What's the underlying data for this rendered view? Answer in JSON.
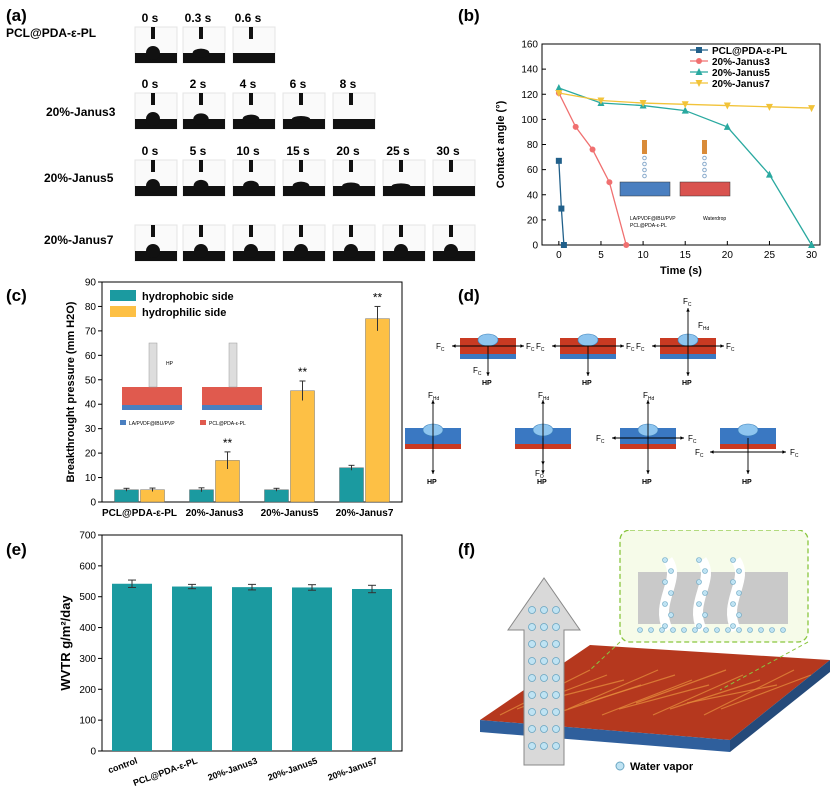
{
  "panels": {
    "a": "(a)",
    "b": "(b)",
    "c": "(c)",
    "d": "(d)",
    "e": "(e)",
    "f": "(f)"
  },
  "panel_a": {
    "rows": [
      {
        "label": "PCL@PDA-ε-PL",
        "times": [
          "0 s",
          "0.3 s",
          "0.6 s"
        ]
      },
      {
        "label": "20%-Janus3",
        "times": [
          "0 s",
          "2 s",
          "4 s",
          "6 s",
          "8 s"
        ]
      },
      {
        "label": "20%-Janus5",
        "times": [
          "0 s",
          "5 s",
          "10 s",
          "15 s",
          "20 s",
          "25 s",
          "30 s"
        ]
      },
      {
        "label": "20%-Janus7",
        "times": [
          "",
          "",
          "",
          "",
          "",
          "",
          ""
        ]
      }
    ]
  },
  "panel_d": {
    "force_labels": [
      "F",
      "C",
      "F",
      "C",
      "F",
      "C",
      "F",
      "C",
      "HP",
      "HP"
    ],
    "labels": {
      "fc": "F",
      "fc_sub": "C",
      "fhd": "F",
      "fhd_sub": "Hd",
      "fo": "F",
      "fo_sub": "O",
      "hp": "HP"
    }
  },
  "panel_f": {
    "legend": "Water vapor"
  },
  "colors": {
    "teal": "#1b9aa0",
    "yellow": "#fdc045",
    "pcl_line": "#21608a",
    "j3_line": "#f07070",
    "j5_line": "#2aa9a0",
    "j7_line": "#f2c339",
    "fiber_red": "#c93a22",
    "fiber_blue": "#3a78c2"
  },
  "chart_data": [
    {
      "id": "b",
      "type": "line",
      "xlabel": "Time (s)",
      "ylabel": "Contact angle (°)",
      "xlim": [
        -2,
        31
      ],
      "ylim": [
        0,
        160
      ],
      "xticks": [
        0,
        5,
        10,
        15,
        20,
        25,
        30
      ],
      "yticks": [
        0,
        20,
        40,
        60,
        80,
        100,
        120,
        140,
        160
      ],
      "legend_position": "top-right",
      "inset_labels": [
        "LA/PVDF@IBU/PVP",
        "PCL@PDA-ε-PL",
        "Waterdrop"
      ],
      "series": [
        {
          "name": "PCL@PDA-ε-PL",
          "marker": "square",
          "x": [
            0,
            0.3,
            0.6
          ],
          "y": [
            67,
            29,
            0
          ]
        },
        {
          "name": "20%-Janus3",
          "marker": "circle",
          "x": [
            0,
            2,
            4,
            6,
            8
          ],
          "y": [
            121,
            94,
            76,
            50,
            0
          ]
        },
        {
          "name": "20%-Janus5",
          "marker": "triangle-up",
          "x": [
            0,
            5,
            10,
            15,
            20,
            25,
            30
          ],
          "y": [
            125,
            113,
            111,
            107,
            94,
            56,
            0
          ]
        },
        {
          "name": "20%-Janus7",
          "marker": "triangle-down",
          "x": [
            0,
            5,
            10,
            15,
            20,
            25,
            30
          ],
          "y": [
            121,
            115,
            113,
            112,
            111,
            110,
            109
          ]
        }
      ]
    },
    {
      "id": "c",
      "type": "bar",
      "ylabel": "Breakthrought pressure (mm H2O)",
      "ylim": [
        0,
        90
      ],
      "yticks": [
        0,
        10,
        20,
        30,
        40,
        50,
        60,
        70,
        80,
        90
      ],
      "categories": [
        "PCL@PDA-ε-PL",
        "20%-Janus3",
        "20%-Janus5",
        "20%-Janus7"
      ],
      "legend_position": "top-left",
      "inset_labels": [
        "HP",
        "LA/PVDF@IBU/PVP",
        "PCL@PDA-ε-PL"
      ],
      "significance": [
        "",
        "**",
        "**",
        "**"
      ],
      "series": [
        {
          "name": "hydrophobic side",
          "values": [
            5,
            5,
            5,
            14
          ],
          "errors": [
            0.6,
            0.8,
            0.6,
            1.0
          ]
        },
        {
          "name": "hydrophilic side",
          "values": [
            5,
            17,
            45.5,
            75
          ],
          "errors": [
            0.7,
            3.5,
            4.0,
            5.0
          ]
        }
      ]
    },
    {
      "id": "e",
      "type": "bar",
      "ylabel": "WVTR g/m²/day",
      "ylim": [
        0,
        700
      ],
      "yticks": [
        0,
        100,
        200,
        300,
        400,
        500,
        600,
        700
      ],
      "categories": [
        "control",
        "PCL@PDA-ε-PL",
        "20%-Janus3",
        "20%-Janus5",
        "20%-Janus7"
      ],
      "series": [
        {
          "values": [
            542,
            533,
            531,
            530,
            525
          ],
          "errors": [
            12,
            7,
            9,
            9,
            12
          ]
        }
      ]
    }
  ]
}
